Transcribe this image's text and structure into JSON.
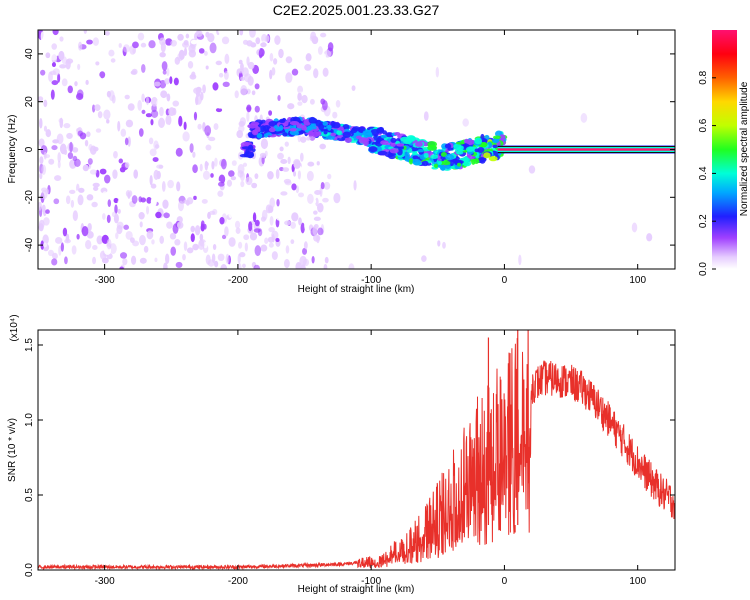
{
  "title": "C2E2.2025.001.23.33.G27",
  "chart_data": [
    {
      "type": "heatmap",
      "xlabel": "Height of straight line (km)",
      "ylabel": "Frequency (Hz)",
      "xlim": [
        -350,
        128
      ],
      "ylim": [
        -50,
        50
      ],
      "xticks": [
        -300,
        -200,
        -100,
        0,
        100
      ],
      "yticks": [
        -40,
        -20,
        0,
        20,
        40
      ],
      "colorbar": {
        "label": "Normalized spectral amplitude",
        "range": [
          0.0,
          1.0
        ],
        "ticks": [
          0.0,
          0.2,
          0.4,
          0.6,
          0.8
        ],
        "tick_labels": [
          "0.0",
          "0.2",
          "0.4",
          "0.6",
          "0.8"
        ]
      },
      "ridge": {
        "x": [
          -190,
          -170,
          -150,
          -130,
          -110,
          -90,
          -75,
          -60,
          -50,
          -40,
          -30,
          -20,
          -10,
          0,
          20,
          40,
          60,
          80,
          100,
          128
        ],
        "y": [
          8,
          9,
          10,
          8,
          6,
          3,
          1,
          -2,
          -3,
          -3,
          -2,
          0,
          1,
          2,
          0,
          0,
          0,
          0,
          0,
          0
        ]
      }
    },
    {
      "type": "line",
      "xlabel": "Height of straight line (km)",
      "ylabel": "SNR (10 * v/v)",
      "multiplier": "(x10⁴)",
      "xlim": [
        -350,
        128
      ],
      "ylim": [
        0,
        1.6
      ],
      "xticks": [
        -300,
        -200,
        -100,
        0,
        100
      ],
      "yticks": [
        0.0,
        0.5,
        1.0,
        1.5
      ],
      "ytick_labels": [
        "0.0",
        "0.5",
        "1.0",
        "1.5"
      ],
      "color": "#e8302a",
      "series": [
        {
          "x": [
            -350,
            -300,
            -250,
            -200,
            -150,
            -120,
            -100,
            -90,
            -80,
            -70,
            -60,
            -50,
            -40,
            -30,
            -20,
            -10,
            0,
            10,
            20,
            30,
            40,
            50,
            60,
            70,
            80,
            90,
            100,
            110,
            120,
            128
          ],
          "values": [
            0.02,
            0.02,
            0.02,
            0.02,
            0.03,
            0.04,
            0.06,
            0.09,
            0.14,
            0.2,
            0.28,
            0.38,
            0.5,
            0.62,
            0.75,
            0.85,
            0.95,
            1.1,
            1.22,
            1.28,
            1.27,
            1.25,
            1.2,
            1.1,
            0.98,
            0.85,
            0.72,
            0.6,
            0.5,
            0.45
          ]
        }
      ],
      "spikes": [
        {
          "x": -12,
          "value": 1.55
        },
        {
          "x": 10,
          "value": 1.62
        },
        {
          "x": 8,
          "value": 0.25
        }
      ]
    }
  ]
}
